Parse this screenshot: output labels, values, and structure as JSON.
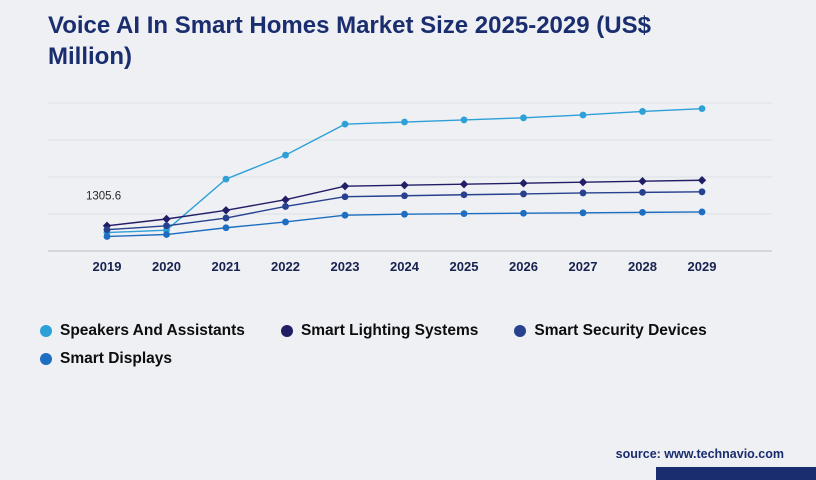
{
  "title": "Voice AI In Smart Homes Market Size 2025-2029 (US$ Million)",
  "footer": {
    "source": "source: www.technavio.com"
  },
  "colors": {
    "background": "#eef0f4",
    "title": "#1a2d6e",
    "grid": "#dcdfe6",
    "axis": "#b7bcc7",
    "tick_label": "#17224e"
  },
  "chart_data": {
    "type": "line",
    "title": "Voice AI In Smart Homes Market Size 2025-2029 (US$ Million)",
    "unit": "US$ Million",
    "categories": [
      "2019",
      "2020",
      "2021",
      "2022",
      "2023",
      "2024",
      "2025",
      "2026",
      "2027",
      "2028",
      "2029"
    ],
    "series": [
      {
        "name": "Speakers And Assistants",
        "color": "#2da0d8",
        "marker": "circle",
        "values": [
          1305.6,
          1480,
          5100,
          6800,
          9000,
          9150,
          9300,
          9450,
          9650,
          9900,
          10100
        ]
      },
      {
        "name": "Smart Lighting Systems",
        "color": "#221e66",
        "marker": "diamond",
        "values": [
          1790,
          2270,
          2890,
          3640,
          4600,
          4670,
          4740,
          4810,
          4880,
          4950,
          5020
        ]
      },
      {
        "name": "Smart Security Devices",
        "color": "#27418f",
        "marker": "circle",
        "values": [
          1510,
          1790,
          2340,
          3160,
          3850,
          3920,
          3990,
          4050,
          4120,
          4160,
          4200
        ]
      },
      {
        "name": "Smart Displays",
        "color": "#1d6ec0",
        "marker": "circle",
        "values": [
          1030,
          1170,
          1650,
          2060,
          2540,
          2610,
          2650,
          2680,
          2710,
          2740,
          2770
        ]
      }
    ],
    "annotation": {
      "text": "1305.6",
      "series": "Speakers And Assistants",
      "category": "2019"
    },
    "xlabel": "",
    "ylabel": "",
    "ylim": [
      0,
      10500
    ],
    "grid": true,
    "legend_position": "bottom"
  }
}
